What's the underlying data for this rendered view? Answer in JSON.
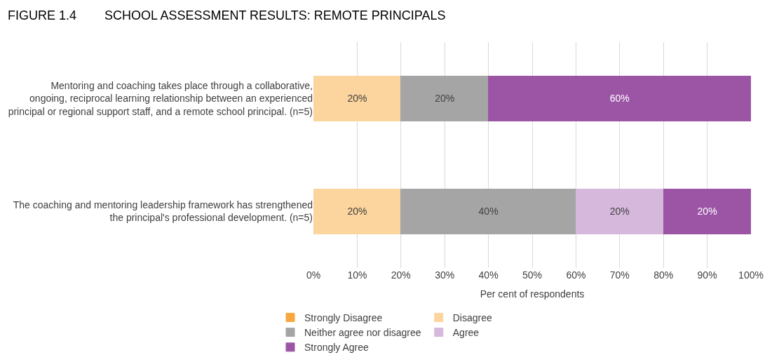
{
  "chart_data": {
    "type": "bar",
    "orientation": "horizontal",
    "stacked": true,
    "title": "FIGURE 1.4        SCHOOL ASSESSMENT RESULTS: REMOTE PRINCIPALS",
    "xlabel": "Per cent of respondents",
    "categories": [
      "Mentoring and coaching takes place through a collaborative,\nongoing, reciprocal learning relationship between an experienced\nprincipal or regional support staff, and a remote school principal. (n=5)",
      "The coaching and mentoring leadership framework has strengthened\nthe principal's professional development. (n=5)"
    ],
    "series": [
      {
        "name": "Strongly Disagree",
        "color": "#f9a73e",
        "values": [
          0,
          0
        ],
        "value_labels": [
          null,
          null
        ]
      },
      {
        "name": "Disagree",
        "color": "#fcd49e",
        "values": [
          20,
          20
        ],
        "value_labels": [
          "20%",
          "20%"
        ]
      },
      {
        "name": "Neither agree nor disagree",
        "color": "#a5a5a5",
        "values": [
          20,
          40
        ],
        "value_labels": [
          "20%",
          "40%"
        ]
      },
      {
        "name": "Agree",
        "color": "#d6b8dc",
        "values": [
          0,
          20
        ],
        "value_labels": [
          null,
          "20%"
        ]
      },
      {
        "name": "Strongly Agree",
        "color": "#9c55a5",
        "values": [
          60,
          20
        ],
        "value_labels": [
          "60%",
          "20%"
        ]
      }
    ],
    "xlim": [
      0,
      100
    ],
    "xticks": [
      {
        "value": 0,
        "label": "0%"
      },
      {
        "value": 10,
        "label": "10%"
      },
      {
        "value": 20,
        "label": "20%"
      },
      {
        "value": 30,
        "label": "30%"
      },
      {
        "value": 40,
        "label": "40%"
      },
      {
        "value": 50,
        "label": "50%"
      },
      {
        "value": 60,
        "label": "60%"
      },
      {
        "value": 70,
        "label": "70%"
      },
      {
        "value": 80,
        "label": "80%"
      },
      {
        "value": 90,
        "label": "90%"
      },
      {
        "value": 100,
        "label": "100%"
      }
    ],
    "grid": "x",
    "legend": "bottom"
  }
}
